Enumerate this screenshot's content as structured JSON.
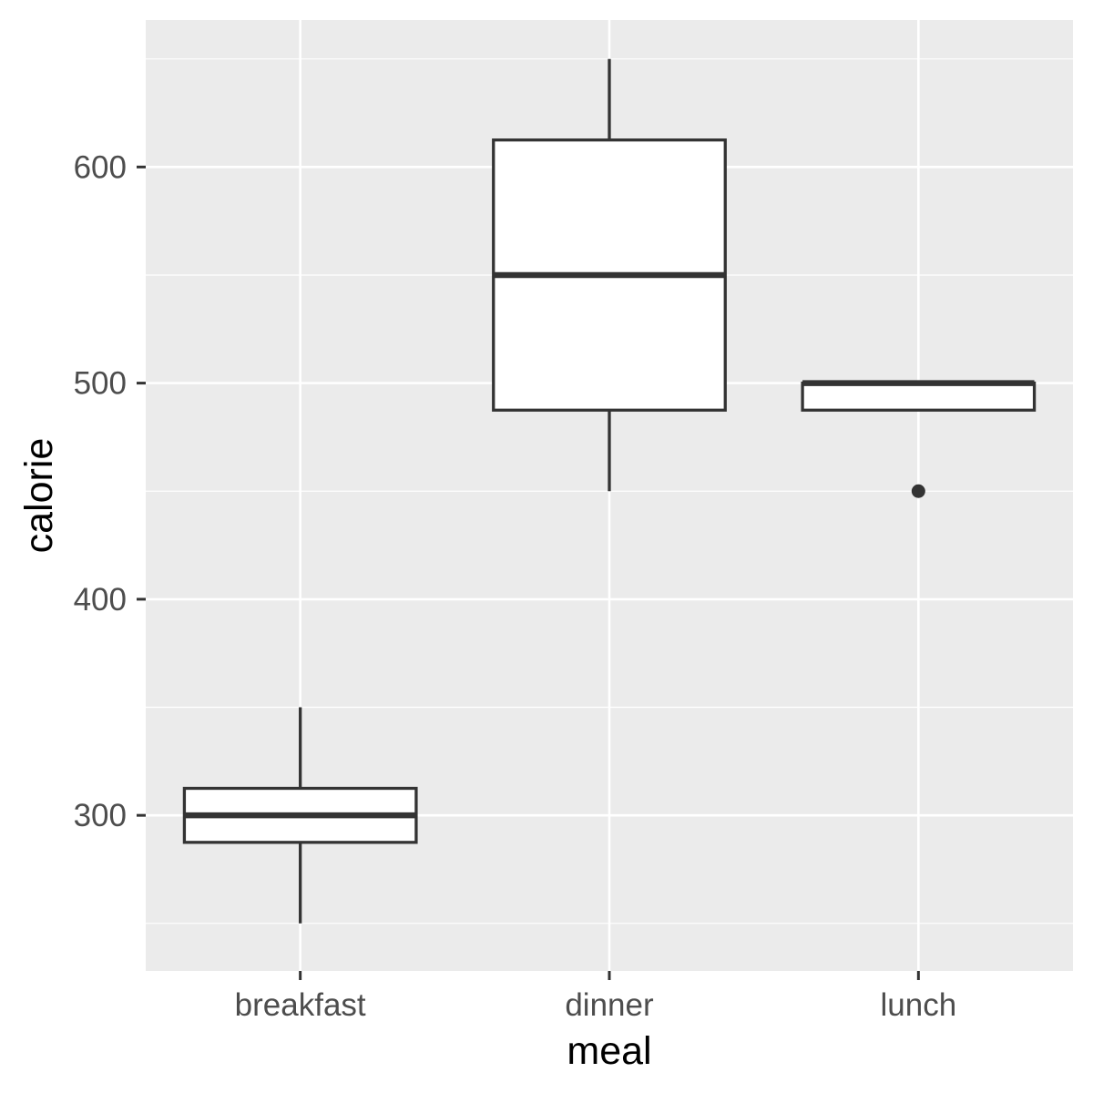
{
  "chart_data": {
    "type": "boxplot",
    "title": "",
    "xlabel": "meal",
    "ylabel": "calorie",
    "categories": [
      "breakfast",
      "dinner",
      "lunch"
    ],
    "ylim": [
      228,
      668
    ],
    "yticks": [
      300,
      400,
      500,
      600
    ],
    "grid": true,
    "boxes": [
      {
        "category": "breakfast",
        "whisker_low": 250,
        "q1": 287.5,
        "median": 300,
        "q3": 312.5,
        "whisker_high": 350,
        "outliers": []
      },
      {
        "category": "dinner",
        "whisker_low": 450,
        "q1": 487.5,
        "median": 550,
        "q3": 612.5,
        "whisker_high": 650,
        "outliers": []
      },
      {
        "category": "lunch",
        "whisker_low": 487.5,
        "q1": 487.5,
        "median": 500,
        "q3": 500,
        "whisker_high": 500,
        "outliers": [
          450
        ]
      }
    ],
    "colors": {
      "panel_background": "#ebebeb",
      "grid": "#ffffff",
      "box_fill": "#ffffff",
      "box_stroke": "#333333",
      "tick_text": "#4d4d4d",
      "axis_title": "#000000",
      "tick_mark": "#333333"
    }
  }
}
